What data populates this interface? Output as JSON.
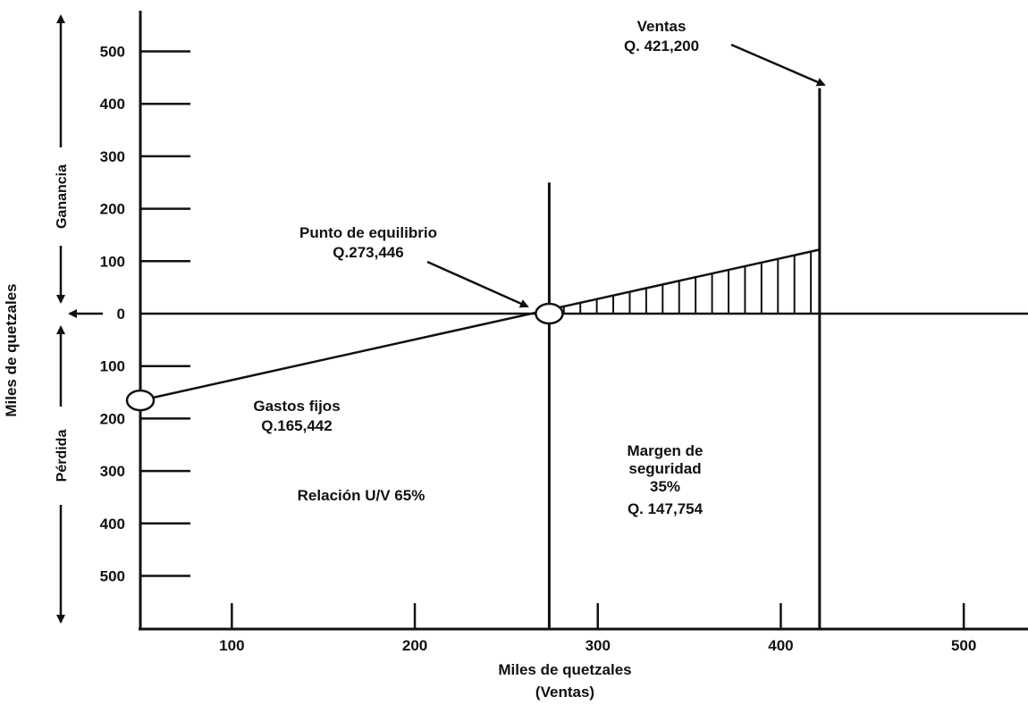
{
  "chart_data": {
    "type": "line",
    "title": "",
    "xlabel": "Miles de quetzales",
    "xlabel_sub": "(Ventas)",
    "ylabel": "Miles de quetzales",
    "y_profit_label": "Ganancia",
    "y_loss_label": "Pérdida",
    "xlim": [
      50,
      535
    ],
    "ylim": [
      -580,
      580
    ],
    "x_ticks": [
      100,
      200,
      300,
      400,
      500
    ],
    "x_tick_labels": [
      "100",
      "200",
      "300",
      "400",
      "500"
    ],
    "y_ticks": [
      500,
      400,
      300,
      200,
      100,
      0,
      -100,
      -200,
      -300,
      -400,
      -500
    ],
    "y_tick_labels": [
      "500",
      "400",
      "300",
      "200",
      "100",
      "0",
      "100",
      "200",
      "300",
      "400",
      "500"
    ],
    "grid": false,
    "legend": "none",
    "series": [
      {
        "x": [
          50,
          421.2
        ],
        "y": [
          -165.442,
          122
        ]
      }
    ],
    "reference_lines": {
      "breakeven_x": 273.446,
      "breakeven_top": 250,
      "sales_x": 421.2,
      "sales_top": 430
    },
    "markers": [
      {
        "x": 50,
        "y": -165.442
      },
      {
        "x": 273.446,
        "y": 0
      }
    ],
    "hatch_profit_region": {
      "from_x": 273.446,
      "to_x": 421.2
    },
    "annotations": {
      "ventas_title": "Ventas",
      "ventas_value": "Q. 421,200",
      "pe_title": "Punto de equilibrio",
      "pe_value": "Q.273,446",
      "gf_title": "Gastos fijos",
      "gf_value": "Q.165,442",
      "uv_ratio": "Relación U/V 65%",
      "ms_line1": "Margen de",
      "ms_line2": "seguridad",
      "ms_line3": "35%",
      "ms_line4": "Q. 147,754"
    }
  }
}
